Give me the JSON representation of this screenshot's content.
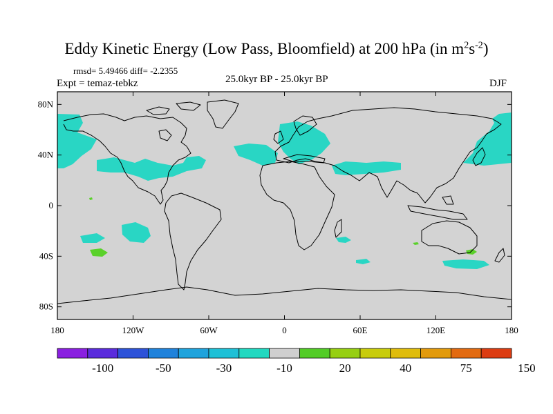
{
  "header": {
    "title_main": "Eddy Kinetic Energy (Low Pass, Bloomfield) at 200 hPa (in m",
    "title_sup1": "2",
    "title_mid": "s",
    "title_sup2": "-2",
    "title_end": ")",
    "stats": "rmsd= 5.49466 diff= -2.2355",
    "experiment": "Expt = temaz-tebkz",
    "period": "25.0kyr BP - 25.0kyr BP",
    "season": "DJF"
  },
  "colors": {
    "ocean_land_background": "#d3d3d3",
    "anomaly_cyan": "#29d6c4",
    "anomaly_green": "#5ad12a",
    "coastline": "#000000"
  },
  "map": {
    "lat_ticks": [
      {
        "value": 80,
        "label": "80N"
      },
      {
        "value": 40,
        "label": "40N"
      },
      {
        "value": 0,
        "label": "0"
      },
      {
        "value": -40,
        "label": "40S"
      },
      {
        "value": -80,
        "label": "80S"
      }
    ],
    "lon_ticks": [
      {
        "value": -180,
        "label": "180"
      },
      {
        "value": -120,
        "label": "120W"
      },
      {
        "value": -60,
        "label": "60W"
      },
      {
        "value": 0,
        "label": "0"
      },
      {
        "value": 60,
        "label": "60E"
      },
      {
        "value": 120,
        "label": "120E"
      },
      {
        "value": 180,
        "label": "180"
      }
    ],
    "lon_range": [
      -180,
      180
    ],
    "lat_range": [
      -90,
      90
    ]
  },
  "colorbar": {
    "colors": [
      "#8a1fe0",
      "#5a2bdc",
      "#2d52d8",
      "#1f82db",
      "#1fa3dc",
      "#1ec0d6",
      "#22d8c0",
      "#cfcfcf",
      "#52cc26",
      "#96cf12",
      "#c8cc0c",
      "#dfbc0c",
      "#e29a0c",
      "#e26a10",
      "#dc3c12"
    ],
    "labels": [
      {
        "after_box": 2,
        "text": "-100"
      },
      {
        "after_box": 4,
        "text": "-50"
      },
      {
        "after_box": 6,
        "text": "-30"
      },
      {
        "after_box": 8,
        "text": "-10"
      },
      {
        "after_box": 10,
        "text": "20"
      },
      {
        "after_box": 12,
        "text": "40"
      },
      {
        "after_box": 14,
        "text": "75"
      },
      {
        "after_box": 16,
        "text": "150"
      }
    ]
  }
}
